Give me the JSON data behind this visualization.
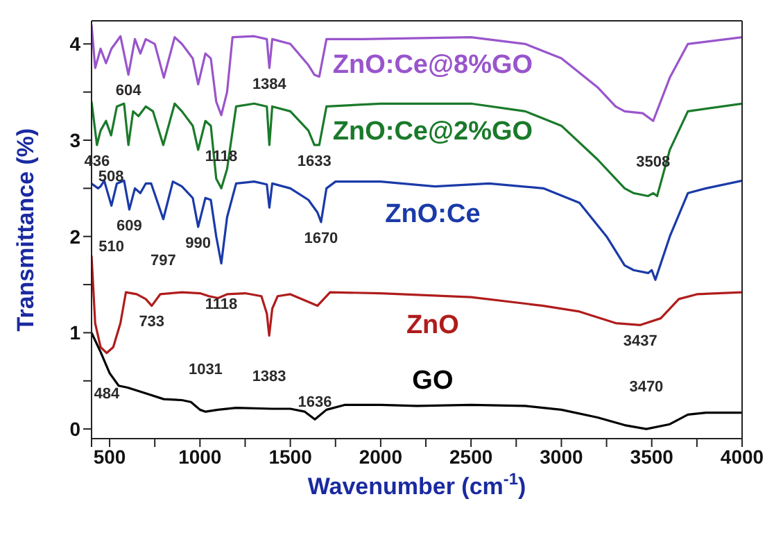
{
  "chart_data": {
    "type": "line",
    "xlabel": "Wavenumber (cm$^{-1}$)",
    "ylabel": "Transmittance (%)",
    "xlim": [
      400,
      4000
    ],
    "ylim": [
      -0.1,
      4.24
    ],
    "xticks": [
      {
        "value": 400,
        "label": null
      },
      500,
      {
        "value": 750,
        "label": null
      },
      1000,
      {
        "value": 1250,
        "label": null
      },
      1500,
      {
        "value": 1750,
        "label": null
      },
      2000,
      {
        "value": 2250,
        "label": null
      },
      2500,
      {
        "value": 2750,
        "label": null
      },
      3000,
      {
        "value": 3250,
        "label": null
      },
      3500,
      {
        "value": 3750,
        "label": null
      },
      4000
    ],
    "yticks": [
      0,
      {
        "value": 0.5,
        "label": null
      },
      1,
      {
        "value": 1.5,
        "label": null
      },
      2,
      {
        "value": 2.5,
        "label": null
      },
      3,
      {
        "value": 3.5,
        "label": null
      },
      4
    ],
    "grid": false,
    "legend": false,
    "marker": "none",
    "line_style": "solid",
    "series": [
      {
        "name": "ZnO:Ce@8%GO",
        "color": "#9955cc",
        "x": [
          400,
          420,
          450,
          480,
          510,
          560,
          604,
          640,
          670,
          700,
          750,
          800,
          860,
          900,
          960,
          990,
          1030,
          1060,
          1090,
          1118,
          1150,
          1180,
          1300,
          1370,
          1384,
          1400,
          1500,
          1600,
          1633,
          1660,
          1700,
          1900,
          2500,
          2800,
          3000,
          3200,
          3300,
          3350,
          3450,
          3508,
          3600,
          3700,
          4000
        ],
        "values": [
          4.2,
          3.75,
          3.95,
          3.8,
          3.95,
          4.08,
          3.68,
          4.05,
          3.9,
          4.05,
          4.0,
          3.65,
          4.07,
          4.0,
          3.85,
          3.58,
          3.9,
          3.85,
          3.4,
          3.26,
          3.5,
          4.07,
          4.08,
          4.05,
          3.75,
          4.05,
          4.0,
          3.78,
          3.68,
          3.66,
          4.05,
          4.05,
          4.07,
          4.0,
          3.85,
          3.55,
          3.35,
          3.3,
          3.28,
          3.2,
          3.65,
          4.0,
          4.07
        ]
      },
      {
        "name": "ZnO:Ce@2%GO",
        "color": "#1a7a2a",
        "x": [
          400,
          430,
          450,
          480,
          508,
          540,
          580,
          604,
          630,
          660,
          700,
          740,
          797,
          860,
          900,
          960,
          990,
          1030,
          1060,
          1090,
          1118,
          1150,
          1200,
          1300,
          1370,
          1384,
          1400,
          1500,
          1600,
          1633,
          1660,
          1700,
          2000,
          2500,
          2800,
          3000,
          3200,
          3350,
          3400,
          3480,
          3508,
          3530,
          3600,
          3700,
          4000
        ],
        "values": [
          3.4,
          2.95,
          3.1,
          3.2,
          3.05,
          3.35,
          3.38,
          2.95,
          3.3,
          3.25,
          3.35,
          3.3,
          2.95,
          3.38,
          3.3,
          3.15,
          2.9,
          3.2,
          3.15,
          2.6,
          2.5,
          2.7,
          3.35,
          3.38,
          3.35,
          2.95,
          3.35,
          3.3,
          3.1,
          2.95,
          2.95,
          3.35,
          3.38,
          3.38,
          3.3,
          3.15,
          2.8,
          2.5,
          2.45,
          2.42,
          2.45,
          2.42,
          2.9,
          3.3,
          3.38
        ]
      },
      {
        "name": "ZnO:Ce",
        "color": "#1a3aa8",
        "x": [
          400,
          436,
          450,
          470,
          510,
          540,
          580,
          609,
          640,
          670,
          700,
          730,
          797,
          850,
          900,
          960,
          990,
          1030,
          1060,
          1090,
          1118,
          1150,
          1200,
          1300,
          1370,
          1384,
          1400,
          1500,
          1600,
          1650,
          1670,
          1700,
          1750,
          2000,
          2300,
          2600,
          2900,
          3100,
          3250,
          3350,
          3400,
          3480,
          3500,
          3520,
          3600,
          3700,
          3800,
          4000
        ],
        "values": [
          2.55,
          2.5,
          2.52,
          2.58,
          2.32,
          2.55,
          2.58,
          2.28,
          2.5,
          2.45,
          2.55,
          2.55,
          2.18,
          2.57,
          2.52,
          2.4,
          2.1,
          2.4,
          2.38,
          2.0,
          1.72,
          2.2,
          2.55,
          2.57,
          2.54,
          2.3,
          2.55,
          2.5,
          2.38,
          2.25,
          2.15,
          2.5,
          2.57,
          2.57,
          2.52,
          2.55,
          2.5,
          2.35,
          2.0,
          1.7,
          1.65,
          1.62,
          1.65,
          1.55,
          2.0,
          2.45,
          2.5,
          2.58
        ]
      },
      {
        "name": "ZnO",
        "color": "#b01c1c",
        "x": [
          400,
          420,
          450,
          484,
          520,
          560,
          590,
          650,
          700,
          733,
          780,
          900,
          1000,
          1050,
          1100,
          1150,
          1250,
          1340,
          1370,
          1383,
          1400,
          1430,
          1500,
          1600,
          1650,
          1720,
          2000,
          2500,
          2900,
          3100,
          3300,
          3437,
          3550,
          3650,
          3750,
          4000
        ],
        "values": [
          1.8,
          1.1,
          0.85,
          0.79,
          0.85,
          1.1,
          1.42,
          1.4,
          1.35,
          1.28,
          1.4,
          1.42,
          1.41,
          1.38,
          1.36,
          1.4,
          1.41,
          1.38,
          1.2,
          0.97,
          1.25,
          1.38,
          1.4,
          1.32,
          1.28,
          1.42,
          1.41,
          1.37,
          1.28,
          1.22,
          1.1,
          1.08,
          1.15,
          1.35,
          1.4,
          1.42
        ]
      },
      {
        "name": "GO",
        "color": "#000000",
        "x": [
          400,
          450,
          500,
          550,
          600,
          700,
          800,
          900,
          950,
          1000,
          1031,
          1100,
          1200,
          1400,
          1500,
          1580,
          1636,
          1700,
          1800,
          2000,
          2200,
          2500,
          2800,
          3000,
          3200,
          3350,
          3470,
          3600,
          3700,
          3800,
          4000
        ],
        "values": [
          1.0,
          0.8,
          0.58,
          0.45,
          0.43,
          0.37,
          0.31,
          0.3,
          0.28,
          0.2,
          0.18,
          0.2,
          0.22,
          0.21,
          0.21,
          0.18,
          0.1,
          0.2,
          0.25,
          0.25,
          0.24,
          0.25,
          0.24,
          0.2,
          0.12,
          0.04,
          0.0,
          0.05,
          0.15,
          0.17,
          0.17
        ]
      }
    ],
    "annotations": [
      {
        "text": "604",
        "x": 604,
        "y": 3.68
      },
      {
        "text": "1118",
        "x": 1118,
        "y": 3.26
      },
      {
        "text": "1384",
        "x": 1384,
        "y": 3.75
      },
      {
        "text": "3508",
        "x": 3508,
        "y": 3.2
      },
      {
        "text": "436",
        "x": 430,
        "y": 2.95
      },
      {
        "text": "508",
        "x": 508,
        "y": 3.05
      },
      {
        "text": "1633",
        "x": 1633,
        "y": 2.95
      },
      {
        "text": "510",
        "x": 510,
        "y": 2.32
      },
      {
        "text": "609",
        "x": 609,
        "y": 2.28
      },
      {
        "text": "797",
        "x": 797,
        "y": 2.18
      },
      {
        "text": "990",
        "x": 990,
        "y": 2.1
      },
      {
        "text": "1118",
        "x": 1118,
        "y": 1.72
      },
      {
        "text": "1670",
        "x": 1670,
        "y": 2.15
      },
      {
        "text": "484",
        "x": 484,
        "y": 0.79
      },
      {
        "text": "733",
        "x": 733,
        "y": 1.28
      },
      {
        "text": "1383",
        "x": 1383,
        "y": 0.97
      },
      {
        "text": "3437",
        "x": 3437,
        "y": 1.08
      },
      {
        "text": "1031",
        "x": 1031,
        "y": 0.18
      },
      {
        "text": "1636",
        "x": 1636,
        "y": 0.1
      },
      {
        "text": "3470",
        "x": 3470,
        "y": 0.0
      }
    ]
  }
}
